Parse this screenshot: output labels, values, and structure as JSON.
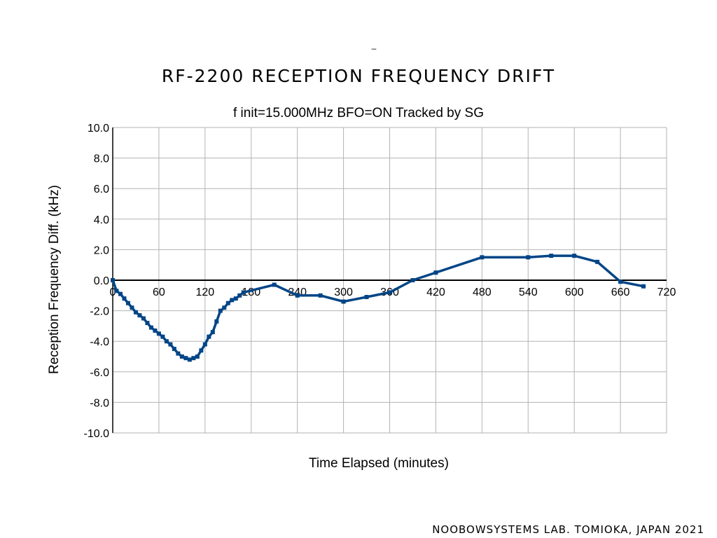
{
  "header": {
    "mark": "–",
    "title": "RF-2200 RECEPTION FREQUENCY DRIFT",
    "subtitle": "f init=15.000MHz BFO=ON Tracked by SG"
  },
  "footer": {
    "credit": "NOOBOWSYSTEMS LAB. TOMIOKA, JAPAN 2021"
  },
  "chart_data": {
    "type": "line",
    "title": "RF-2200 RECEPTION FREQUENCY DRIFT",
    "subtitle": "f init=15.000MHz BFO=ON Tracked by SG",
    "xlabel": "Time Elapsed (minutes)",
    "ylabel": "Reception Frequency Diff.  (kHz)",
    "xlim": [
      0,
      720
    ],
    "ylim": [
      -10,
      10
    ],
    "x_ticks": [
      0,
      60,
      120,
      180,
      240,
      300,
      360,
      420,
      480,
      540,
      600,
      660,
      720
    ],
    "x_tick_labels": [
      "0",
      "60",
      "120",
      "180",
      "240",
      "300",
      "360",
      "420",
      "480",
      "540",
      "600",
      "660",
      "720"
    ],
    "y_ticks": [
      -10,
      -8,
      -6,
      -4,
      -2,
      0,
      2,
      4,
      6,
      8,
      10
    ],
    "y_tick_labels": [
      "-10.0",
      "-8.0",
      "-6.0",
      "-4.0",
      "-2.0",
      "0.0",
      "2.0",
      "4.0",
      "6.0",
      "8.0",
      "10.0"
    ],
    "grid": true,
    "line_color": "#004586",
    "x": [
      0,
      5,
      10,
      15,
      20,
      25,
      30,
      35,
      40,
      45,
      50,
      55,
      60,
      65,
      70,
      75,
      80,
      85,
      90,
      95,
      100,
      105,
      110,
      115,
      120,
      125,
      130,
      135,
      140,
      145,
      150,
      155,
      160,
      165,
      170,
      210,
      240,
      270,
      300,
      330,
      360,
      390,
      420,
      480,
      540,
      570,
      600,
      630,
      660,
      690
    ],
    "series": [
      {
        "values": [
          0.0,
          -0.7,
          -0.9,
          -1.2,
          -1.5,
          -1.8,
          -2.1,
          -2.3,
          -2.5,
          -2.8,
          -3.1,
          -3.3,
          -3.5,
          -3.7,
          -4.0,
          -4.2,
          -4.5,
          -4.8,
          -5.0,
          -5.1,
          -5.2,
          -5.1,
          -5.0,
          -4.6,
          -4.2,
          -3.7,
          -3.4,
          -2.7,
          -2.0,
          -1.8,
          -1.5,
          -1.3,
          -1.2,
          -1.0,
          -0.8,
          -0.3,
          -1.0,
          -1.0,
          -1.4,
          -1.1,
          -0.8,
          0.0,
          0.5,
          1.5,
          1.5,
          1.6,
          1.6,
          1.2,
          -0.1,
          -0.4
        ]
      }
    ]
  }
}
